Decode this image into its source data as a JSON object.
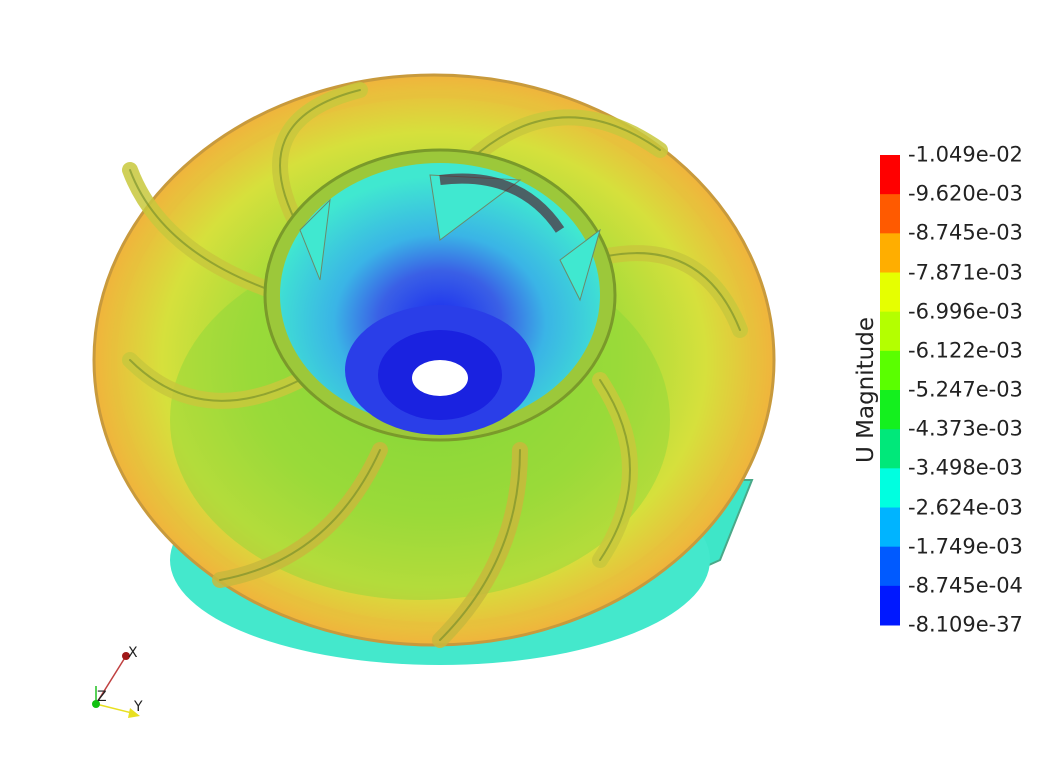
{
  "legend": {
    "title": "U Magnitude",
    "ticks": [
      "1.049e-02",
      "9.620e-03",
      "8.745e-03",
      "7.871e-03",
      "6.996e-03",
      "6.122e-03",
      "5.247e-03",
      "4.373e-03",
      "3.498e-03",
      "2.624e-03",
      "1.749e-03",
      "8.745e-04",
      "8.109e-37"
    ],
    "colors": [
      "#ff0000",
      "#ff5a00",
      "#ffae00",
      "#e6ff00",
      "#b4ff00",
      "#5aff00",
      "#14f01e",
      "#00e87a",
      "#00ffe0",
      "#00b4ff",
      "#005aff",
      "#0018ff"
    ]
  },
  "axes": {
    "x": "X",
    "y": "Y",
    "z": "Z"
  },
  "scene": {
    "blade_count": 8,
    "icon": "impeller-velocity-render"
  }
}
